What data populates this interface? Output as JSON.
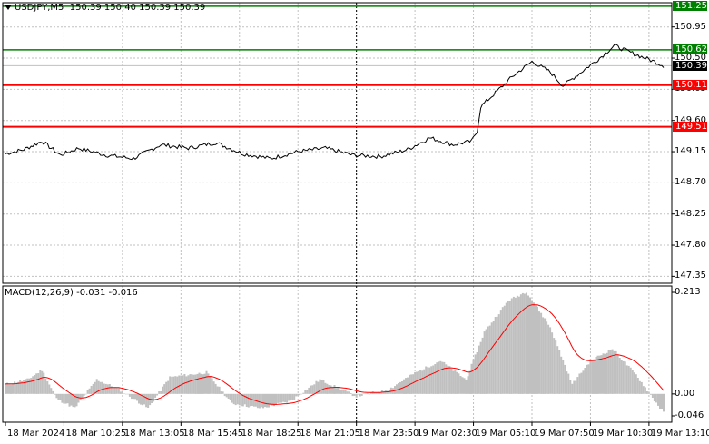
{
  "header": {
    "symbol": "USDJPY,M5",
    "ohlc": "150.39 150.40 150.39 150.39"
  },
  "macd_header": {
    "label": "MACD(12,26,9) -0.031 -0.016"
  },
  "colors": {
    "price_line": "#000000",
    "grid": "#c0c0c0",
    "green_level": "#008000",
    "red_level": "#ff0000",
    "macd_hist": "#c0c0c0",
    "signal": "#ff0000",
    "current_tag_bg": "#000000"
  },
  "chart_data": [
    {
      "type": "line",
      "name": "USDJPY M5 price",
      "ylim": [
        147.25,
        151.3
      ],
      "y_ticks": [
        "150.95",
        "150.50",
        "150.05",
        "149.60",
        "149.15",
        "148.70",
        "148.25",
        "147.80",
        "147.35"
      ],
      "x_ticks": [
        "18 Mar 2024",
        "18 Mar 10:25",
        "18 Mar 13:05",
        "18 Mar 15:45",
        "18 Mar 18:25",
        "18 Mar 21:05",
        "18 Mar 23:50",
        "19 Mar 02:30",
        "19 Mar 05:10",
        "19 Mar 07:50",
        "19 Mar 10:30",
        "19 Mar 13:10"
      ],
      "x_tick_index": [
        0,
        32,
        64,
        96,
        128,
        160,
        192,
        224,
        256,
        288,
        320,
        352
      ],
      "price_levels": [
        {
          "value": 151.25,
          "label": "151.25",
          "kind": "resistance"
        },
        {
          "value": 150.62,
          "label": "150.62",
          "kind": "resistance"
        },
        {
          "value": 150.11,
          "label": "150.11",
          "kind": "support"
        },
        {
          "value": 149.51,
          "label": "149.51",
          "kind": "support"
        }
      ],
      "current_price": {
        "value": 150.39,
        "label": "150.39"
      },
      "anchors": [
        [
          0,
          149.12
        ],
        [
          10,
          149.18
        ],
        [
          20,
          149.3
        ],
        [
          30,
          149.1
        ],
        [
          40,
          149.2
        ],
        [
          55,
          149.1
        ],
        [
          70,
          149.05
        ],
        [
          85,
          149.25
        ],
        [
          100,
          149.2
        ],
        [
          115,
          149.28
        ],
        [
          130,
          149.12
        ],
        [
          145,
          149.05
        ],
        [
          160,
          149.15
        ],
        [
          175,
          149.2
        ],
        [
          190,
          149.1
        ],
        [
          205,
          149.08
        ],
        [
          220,
          149.18
        ],
        [
          232,
          149.35
        ],
        [
          245,
          149.25
        ],
        [
          255,
          149.3
        ],
        [
          258,
          149.45
        ],
        [
          260,
          149.8
        ],
        [
          268,
          150.0
        ],
        [
          278,
          150.25
        ],
        [
          288,
          150.45
        ],
        [
          298,
          150.3
        ],
        [
          305,
          150.1
        ],
        [
          315,
          150.3
        ],
        [
          325,
          150.5
        ],
        [
          333,
          150.68
        ],
        [
          345,
          150.55
        ],
        [
          355,
          150.45
        ],
        [
          360,
          150.39
        ]
      ]
    },
    {
      "type": "bar",
      "name": "MACD(12,26,9)",
      "ylim": [
        -0.046,
        0.213
      ],
      "y_ticks": [
        "0.213",
        "0.00",
        "-0.046"
      ],
      "macd_last": -0.031,
      "signal_last": -0.016,
      "anchors": [
        [
          0,
          0.02
        ],
        [
          12,
          0.03
        ],
        [
          20,
          0.05
        ],
        [
          28,
          -0.01
        ],
        [
          38,
          -0.03
        ],
        [
          50,
          0.03
        ],
        [
          62,
          0.01
        ],
        [
          78,
          -0.03
        ],
        [
          90,
          0.035
        ],
        [
          110,
          0.045
        ],
        [
          124,
          -0.02
        ],
        [
          140,
          -0.03
        ],
        [
          156,
          -0.015
        ],
        [
          172,
          0.03
        ],
        [
          192,
          -0.005
        ],
        [
          210,
          0.01
        ],
        [
          222,
          0.04
        ],
        [
          238,
          0.07
        ],
        [
          252,
          0.03
        ],
        [
          262,
          0.13
        ],
        [
          275,
          0.195
        ],
        [
          285,
          0.215
        ],
        [
          298,
          0.14
        ],
        [
          310,
          0.02
        ],
        [
          320,
          0.07
        ],
        [
          332,
          0.095
        ],
        [
          345,
          0.04
        ],
        [
          360,
          -0.04
        ]
      ]
    }
  ]
}
